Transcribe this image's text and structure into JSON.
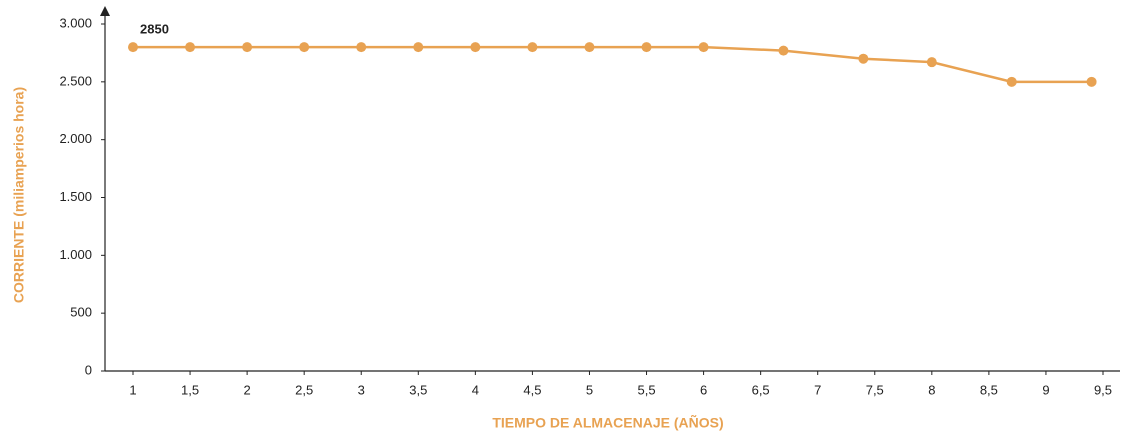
{
  "chart_data": {
    "type": "line",
    "annotation": "2850",
    "xlabel": "TIEMPO DE ALMACENAJE (AÑOS)",
    "ylabel": "CORRIENTE (miliamperios hora)",
    "x": [
      1,
      1.5,
      2,
      2.5,
      3,
      3.5,
      4,
      4.5,
      5,
      5.5,
      6,
      6.7,
      7.4,
      8,
      8.7,
      9.4
    ],
    "series": [
      {
        "name": "Corriente",
        "color": "#e8a252",
        "values": [
          2800,
          2800,
          2800,
          2800,
          2800,
          2800,
          2800,
          2800,
          2800,
          2800,
          2800,
          2770,
          2700,
          2670,
          2500,
          2500
        ]
      }
    ],
    "xlim": [
      1,
      9.5
    ],
    "xticks": [
      1,
      {
        "value": 1.5,
        "label": "1,5"
      },
      2,
      {
        "value": 2.5,
        "label": "2,5"
      },
      3,
      {
        "value": 3.5,
        "label": "3,5"
      },
      4,
      {
        "value": 4.5,
        "label": "4,5"
      },
      5,
      {
        "value": 5.5,
        "label": "5,5"
      },
      6,
      {
        "value": 6.5,
        "label": "6,5"
      },
      7,
      {
        "value": 7.5,
        "label": "7,5"
      },
      8,
      {
        "value": 8.5,
        "label": "8,5"
      },
      9,
      {
        "value": 9.5,
        "label": "9,5"
      }
    ],
    "ylim": [
      0,
      3000
    ],
    "yticks": [
      0,
      500,
      {
        "value": 1000,
        "label": "1.000"
      },
      {
        "value": 1500,
        "label": "1.500"
      },
      {
        "value": 2000,
        "label": "2.000"
      },
      {
        "value": 2500,
        "label": "2.500"
      },
      {
        "value": 3000,
        "label": "3.000"
      }
    ],
    "grid": false
  }
}
